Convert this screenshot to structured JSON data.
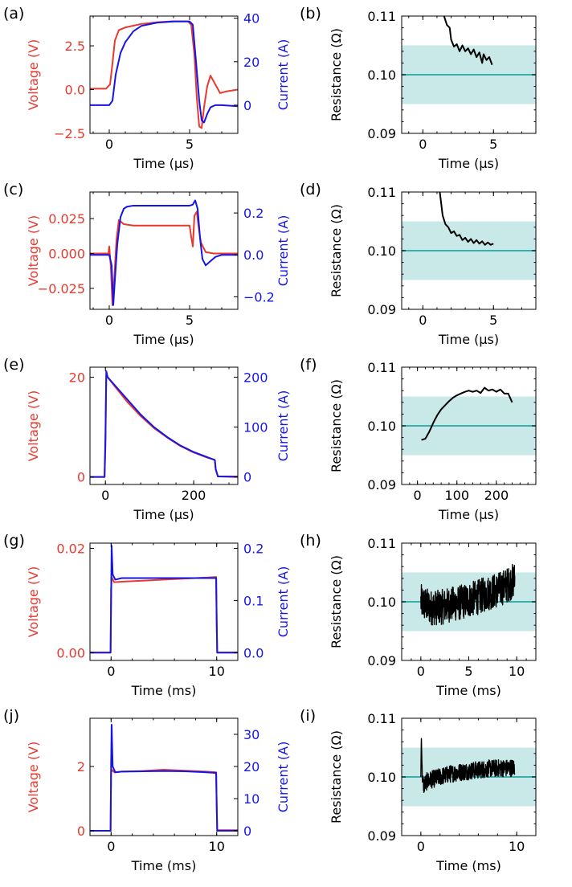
{
  "chart_data": [
    {
      "id": "a",
      "type": "line",
      "panel_label": "(a)",
      "xlabel": "Time (μs)",
      "xlim": [
        -1.2,
        8
      ],
      "xticks": [
        0,
        5
      ],
      "xtick_labels": [
        "0",
        "5"
      ],
      "ylabel_left": "Voltage (V)",
      "ylim_left": [
        -2.5,
        4.2
      ],
      "yticks_left": [
        -2.5,
        0.0,
        2.5
      ],
      "ytick_labels_left": [
        "−2.5",
        "0.0",
        "2.5"
      ],
      "ylabel_right": "Current (A)",
      "ylim_right": [
        -13,
        41
      ],
      "yticks_right": [
        0,
        20,
        40
      ],
      "ytick_labels_right": [
        "0",
        "20",
        "40"
      ],
      "series": [
        {
          "name": "Voltage",
          "axis": "left",
          "color": "#e8392e",
          "x": [
            -1.2,
            -0.2,
            0.05,
            0.2,
            0.35,
            0.6,
            1.0,
            2.0,
            3.0,
            4.0,
            4.9,
            5.1,
            5.3,
            5.45,
            5.6,
            5.75,
            5.9,
            6.1,
            6.3,
            6.6,
            6.9,
            7.3,
            8.0
          ],
          "y": [
            0.05,
            0.05,
            0.3,
            1.5,
            2.8,
            3.4,
            3.55,
            3.75,
            3.85,
            3.9,
            3.9,
            3.7,
            2.0,
            -0.5,
            -2.1,
            -2.2,
            -1.0,
            0.2,
            0.8,
            0.3,
            -0.2,
            -0.1,
            0.0
          ]
        },
        {
          "name": "Current",
          "axis": "right",
          "color": "#1515e8",
          "x": [
            -1.2,
            0.0,
            0.2,
            0.4,
            0.7,
            1.0,
            1.5,
            2.0,
            3.0,
            4.0,
            5.0,
            5.2,
            5.4,
            5.6,
            5.75,
            5.9,
            6.1,
            6.3,
            6.6,
            7.0,
            8.0
          ],
          "y": [
            0,
            0,
            2,
            14,
            24,
            29,
            34,
            36.5,
            38,
            38.5,
            38.5,
            37,
            20,
            2,
            -7,
            -8,
            -4,
            -1,
            0,
            0,
            -0.5
          ]
        }
      ]
    },
    {
      "id": "b",
      "type": "line",
      "panel_label": "(b)",
      "xlabel": "Time (μs)",
      "xlim": [
        -1.5,
        8
      ],
      "xticks": [
        0,
        5
      ],
      "xtick_labels": [
        "0",
        "5"
      ],
      "ylabel": "Resistance (Ω)",
      "ylim": [
        0.09,
        0.11
      ],
      "yticks": [
        0.09,
        0.1,
        0.11
      ],
      "ytick_labels": [
        "0.09",
        "0.10",
        "0.11"
      ],
      "band": [
        0.095,
        0.105
      ],
      "reference": 0.1,
      "series": [
        {
          "name": "Resistance",
          "color": "#000000",
          "x": [
            1.5,
            1.7,
            1.9,
            2.0,
            2.2,
            2.4,
            2.6,
            2.8,
            3.0,
            3.2,
            3.4,
            3.6,
            3.8,
            4.0,
            4.2,
            4.3,
            4.5,
            4.7,
            4.9
          ],
          "y": [
            0.11,
            0.1085,
            0.108,
            0.106,
            0.1048,
            0.1052,
            0.104,
            0.105,
            0.104,
            0.1045,
            0.1035,
            0.1043,
            0.103,
            0.1038,
            0.102,
            0.1035,
            0.1025,
            0.103,
            0.1017
          ]
        }
      ]
    },
    {
      "id": "c",
      "type": "line",
      "panel_label": "(c)",
      "xlabel": "Time (μs)",
      "xlim": [
        -1.2,
        8
      ],
      "xticks": [
        0,
        5
      ],
      "xtick_labels": [
        "0",
        "5"
      ],
      "ylabel_left": "Voltage (V)",
      "ylim_left": [
        -0.04,
        0.044
      ],
      "yticks_left": [
        -0.025,
        0.0,
        0.025
      ],
      "ytick_labels_left": [
        "−0.025",
        "0.000",
        "0.025"
      ],
      "ylabel_right": "Current (A)",
      "ylim_right": [
        -0.26,
        0.3
      ],
      "yticks_right": [
        -0.2,
        0.0,
        0.2
      ],
      "ytick_labels_right": [
        "−0.2",
        "0.0",
        "0.2"
      ],
      "series": [
        {
          "name": "Voltage",
          "axis": "left",
          "color": "#e8392e",
          "x": [
            -1.2,
            -0.05,
            0.0,
            0.1,
            0.2,
            0.3,
            0.45,
            0.6,
            0.9,
            1.5,
            3.0,
            4.5,
            5.0,
            5.1,
            5.2,
            5.3,
            5.45,
            5.55,
            5.7,
            6.0,
            6.5,
            7.0,
            8.0
          ],
          "y": [
            0.0,
            0.0,
            0.005,
            -0.01,
            -0.037,
            -0.02,
            0.01,
            0.024,
            0.021,
            0.02,
            0.02,
            0.02,
            0.02,
            0.012,
            0.005,
            0.027,
            0.03,
            0.02,
            0.008,
            0.001,
            0.0,
            0.0,
            0.0
          ]
        },
        {
          "name": "Current",
          "axis": "right",
          "color": "#1515e8",
          "x": [
            -1.2,
            0.0,
            0.15,
            0.25,
            0.35,
            0.5,
            0.7,
            0.9,
            1.1,
            1.5,
            3.0,
            4.5,
            5.0,
            5.2,
            5.35,
            5.5,
            5.65,
            5.8,
            6.0,
            6.3,
            6.6,
            7.0,
            8.0
          ],
          "y": [
            0.0,
            0.0,
            -0.05,
            -0.24,
            -0.12,
            0.05,
            0.18,
            0.22,
            0.23,
            0.235,
            0.235,
            0.235,
            0.235,
            0.24,
            0.26,
            0.22,
            0.08,
            -0.02,
            -0.05,
            -0.03,
            -0.01,
            0.0,
            0.0
          ]
        }
      ]
    },
    {
      "id": "d",
      "type": "line",
      "panel_label": "(d)",
      "xlabel": "Time (μs)",
      "xlim": [
        -1.5,
        8
      ],
      "xticks": [
        0,
        5
      ],
      "xtick_labels": [
        "0",
        "5"
      ],
      "ylabel": "Resistance (Ω)",
      "ylim": [
        0.09,
        0.11
      ],
      "yticks": [
        0.09,
        0.1,
        0.11
      ],
      "ytick_labels": [
        "0.09",
        "0.10",
        "0.11"
      ],
      "band": [
        0.095,
        0.105
      ],
      "reference": 0.1,
      "series": [
        {
          "name": "Resistance",
          "color": "#000000",
          "x": [
            1.2,
            1.4,
            1.6,
            1.8,
            2.0,
            2.2,
            2.4,
            2.6,
            2.8,
            3.0,
            3.2,
            3.4,
            3.6,
            3.8,
            4.0,
            4.2,
            4.4,
            4.6,
            4.8,
            5.0
          ],
          "y": [
            0.11,
            0.106,
            0.1045,
            0.104,
            0.103,
            0.1033,
            0.1025,
            0.1027,
            0.1018,
            0.1022,
            0.1015,
            0.102,
            0.1013,
            0.1018,
            0.1012,
            0.1016,
            0.101,
            0.1014,
            0.101,
            0.1012
          ]
        }
      ]
    },
    {
      "id": "e",
      "type": "line",
      "panel_label": "(e)",
      "xlabel": "Time (μs)",
      "xlim": [
        -35,
        300
      ],
      "xticks": [
        0,
        200
      ],
      "xtick_labels": [
        "0",
        "200"
      ],
      "ylabel_left": "Voltage (V)",
      "ylim_left": [
        -1.5,
        22
      ],
      "yticks_left": [
        0,
        20
      ],
      "ytick_labels_left": [
        "0",
        "20"
      ],
      "ylabel_right": "Current (A)",
      "ylim_right": [
        -15,
        220
      ],
      "yticks_right": [
        0,
        100,
        200
      ],
      "ytick_labels_right": [
        "0",
        "100",
        "200"
      ],
      "series": [
        {
          "name": "Voltage",
          "axis": "left",
          "color": "#e8392e",
          "x": [
            -35,
            -2,
            0,
            2,
            5,
            20,
            50,
            80,
            110,
            140,
            170,
            200,
            230,
            245,
            248,
            250,
            255,
            300
          ],
          "y": [
            0,
            0,
            6,
            20.5,
            20,
            18.3,
            15.0,
            12.2,
            9.8,
            7.9,
            6.2,
            4.9,
            3.9,
            3.5,
            3.4,
            1.5,
            0.1,
            0.1
          ]
        },
        {
          "name": "Current",
          "axis": "right",
          "color": "#1515e8",
          "x": [
            -35,
            -2,
            0,
            2,
            5,
            20,
            50,
            80,
            110,
            140,
            170,
            200,
            230,
            245,
            248,
            250,
            255,
            300
          ],
          "y": [
            0,
            0,
            80,
            212,
            200,
            185,
            155,
            125,
            100,
            80,
            63,
            50,
            40,
            35,
            34,
            15,
            1,
            0
          ]
        }
      ]
    },
    {
      "id": "f",
      "type": "line",
      "panel_label": "(f)",
      "xlabel": "Time (μs)",
      "xlim": [
        -40,
        300
      ],
      "xticks": [
        0,
        100,
        200
      ],
      "xtick_labels": [
        "0",
        "100",
        "200"
      ],
      "ylabel": "Resistance (Ω)",
      "ylim": [
        0.09,
        0.11
      ],
      "yticks": [
        0.09,
        0.1,
        0.11
      ],
      "ytick_labels": [
        "0.09",
        "0.10",
        "0.11"
      ],
      "band": [
        0.095,
        0.105
      ],
      "reference": 0.1,
      "series": [
        {
          "name": "Resistance",
          "color": "#000000",
          "x": [
            10,
            20,
            30,
            40,
            50,
            60,
            70,
            80,
            90,
            100,
            110,
            120,
            130,
            140,
            150,
            160,
            170,
            180,
            190,
            200,
            210,
            220,
            230,
            240
          ],
          "y": [
            0.0976,
            0.0978,
            0.099,
            0.1005,
            0.1018,
            0.1028,
            0.1035,
            0.1042,
            0.1048,
            0.1052,
            0.1055,
            0.1058,
            0.106,
            0.1058,
            0.106,
            0.1056,
            0.1065,
            0.106,
            0.1062,
            0.1058,
            0.1062,
            0.1055,
            0.1055,
            0.104
          ]
        }
      ]
    },
    {
      "id": "g",
      "type": "line",
      "panel_label": "(g)",
      "xlabel": "Time (ms)",
      "xlim": [
        -2,
        12
      ],
      "xticks": [
        0,
        10
      ],
      "xtick_labels": [
        "0",
        "10"
      ],
      "ylabel_left": "Voltage (V)",
      "ylim_left": [
        -0.0015,
        0.021
      ],
      "yticks_left": [
        0.0,
        0.02
      ],
      "ytick_labels_left": [
        "0.00",
        "0.02"
      ],
      "ylabel_right": "Current (A)",
      "ylim_right": [
        -0.015,
        0.21
      ],
      "yticks_right": [
        0.0,
        0.1,
        0.2
      ],
      "ytick_labels_right": [
        "0.0",
        "0.1",
        "0.2"
      ],
      "series": [
        {
          "name": "Voltage",
          "axis": "left",
          "color": "#e8392e",
          "x": [
            -2,
            -0.05,
            0.0,
            0.05,
            0.3,
            1,
            3,
            5,
            7,
            9,
            9.95,
            10.0,
            10.05,
            12
          ],
          "y": [
            0,
            0,
            0.012,
            0.0145,
            0.0135,
            0.0136,
            0.0138,
            0.014,
            0.0142,
            0.0144,
            0.0145,
            0.006,
            0.0,
            0
          ]
        },
        {
          "name": "Current",
          "axis": "right",
          "color": "#1515e8",
          "x": [
            -2,
            -0.05,
            0.0,
            0.05,
            0.15,
            0.4,
            1,
            3,
            5,
            7,
            9,
            9.95,
            10.0,
            10.05,
            12
          ],
          "y": [
            0,
            0,
            0.1,
            0.205,
            0.15,
            0.14,
            0.143,
            0.143,
            0.143,
            0.143,
            0.143,
            0.143,
            0.06,
            0.0,
            0
          ]
        }
      ]
    },
    {
      "id": "h",
      "type": "line",
      "panel_label": "(h)",
      "xlabel": "Time (ms)",
      "xlim": [
        -2,
        12
      ],
      "xticks": [
        0,
        5,
        10
      ],
      "xtick_labels": [
        "0",
        "5",
        "10"
      ],
      "ylabel": "Resistance (Ω)",
      "ylim": [
        0.09,
        0.11
      ],
      "yticks": [
        0.09,
        0.1,
        0.11
      ],
      "ytick_labels": [
        "0.09",
        "0.10",
        "0.11"
      ],
      "band": [
        0.095,
        0.105
      ],
      "reference": 0.1,
      "series": [
        {
          "name": "Resistance",
          "color": "#000000",
          "style": "noisy",
          "x": [
            0,
            1,
            2,
            3,
            4,
            5,
            6,
            7,
            8,
            9,
            9.8
          ],
          "y": [
            0.1,
            0.099,
            0.099,
            0.0995,
            0.0998,
            0.1003,
            0.1008,
            0.1015,
            0.102,
            0.1028,
            0.1038
          ],
          "spread": [
            0.003,
            0.003,
            0.003,
            0.003,
            0.003,
            0.003,
            0.003,
            0.003,
            0.003,
            0.003,
            0.003
          ]
        }
      ]
    },
    {
      "id": "j",
      "type": "line",
      "panel_label": "(j)",
      "xlabel": "Time (ms)",
      "xlim": [
        -2,
        12
      ],
      "xticks": [
        0,
        10
      ],
      "xtick_labels": [
        "0",
        "10"
      ],
      "ylabel_left": "Voltage (V)",
      "ylim_left": [
        -0.15,
        3.5
      ],
      "yticks_left": [
        0,
        2
      ],
      "ytick_labels_left": [
        "0",
        "2"
      ],
      "ylabel_right": "Current (A)",
      "ylim_right": [
        -1.5,
        35
      ],
      "yticks_right": [
        0,
        10,
        20,
        30
      ],
      "ytick_labels_right": [
        "0",
        "10",
        "20",
        "30"
      ],
      "series": [
        {
          "name": "Voltage",
          "axis": "left",
          "color": "#e8392e",
          "x": [
            -2,
            -0.05,
            0.0,
            0.05,
            0.3,
            1,
            3,
            5,
            7,
            9,
            9.95,
            10.0,
            10.05,
            12
          ],
          "y": [
            0,
            0,
            1.8,
            1.9,
            1.82,
            1.84,
            1.86,
            1.9,
            1.87,
            1.84,
            1.82,
            0.8,
            0.02,
            0.02
          ]
        },
        {
          "name": "Current",
          "axis": "right",
          "color": "#1515e8",
          "x": [
            -2,
            -0.05,
            0.0,
            0.05,
            0.15,
            0.4,
            1,
            3,
            5,
            7,
            9,
            9.95,
            10.0,
            10.05,
            12
          ],
          "y": [
            0,
            0,
            20,
            33,
            20,
            18.2,
            18.4,
            18.5,
            18.6,
            18.5,
            18.2,
            18,
            8,
            0,
            0
          ]
        }
      ]
    },
    {
      "id": "i",
      "type": "line",
      "panel_label": "(i)",
      "xlabel": "Time (ms)",
      "xlim": [
        -2,
        12
      ],
      "xticks": [
        0,
        10
      ],
      "xtick_labels": [
        "0",
        "10"
      ],
      "ylabel": "Resistance (Ω)",
      "ylim": [
        0.09,
        0.11
      ],
      "yticks": [
        0.09,
        0.1,
        0.11
      ],
      "ytick_labels": [
        "0.09",
        "0.10",
        "0.11"
      ],
      "band": [
        0.095,
        0.105
      ],
      "reference": 0.1,
      "series": [
        {
          "name": "Resistance",
          "color": "#000000",
          "style": "noisy",
          "x": [
            0.0,
            0.05,
            0.15,
            0.3,
            0.6,
            1,
            2,
            3,
            4,
            5,
            6,
            7,
            8,
            9,
            9.8
          ],
          "y": [
            0.1,
            0.107,
            0.1,
            0.0985,
            0.0992,
            0.0995,
            0.1,
            0.1005,
            0.1008,
            0.101,
            0.1012,
            0.1014,
            0.1015,
            0.1015,
            0.1016
          ],
          "spread": [
            0.0,
            0.0,
            0.001,
            0.0015,
            0.0015,
            0.0015,
            0.0015,
            0.0015,
            0.0015,
            0.0015,
            0.0015,
            0.0015,
            0.0015,
            0.0015,
            0.0015
          ]
        }
      ]
    }
  ],
  "colors": {
    "voltage": "#e8392e",
    "current": "#1515e8",
    "resistance": "#000000",
    "band_fill": "#c9e9e8",
    "reference_line": "#3aafb0"
  }
}
